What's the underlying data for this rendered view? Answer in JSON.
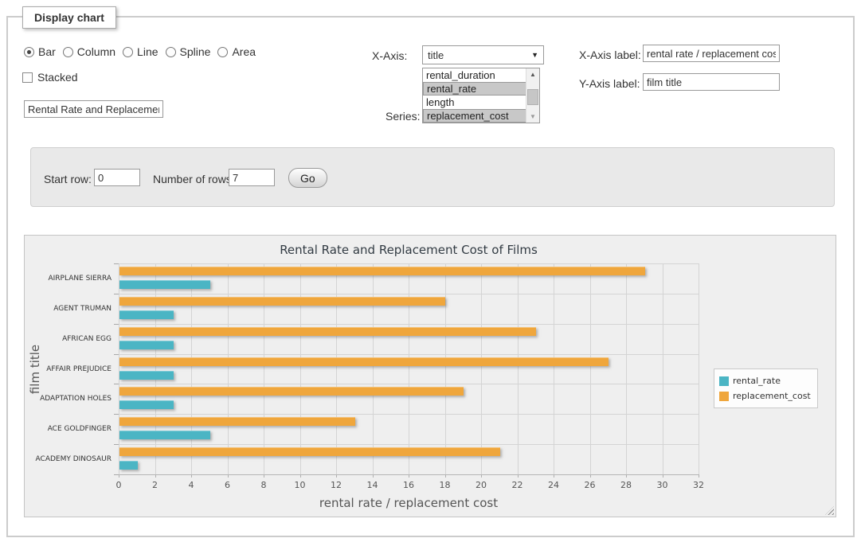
{
  "panel": {
    "legend": "Display chart"
  },
  "chart_type": {
    "options": [
      {
        "label": "Bar",
        "selected": true
      },
      {
        "label": "Column",
        "selected": false
      },
      {
        "label": "Line",
        "selected": false
      },
      {
        "label": "Spline",
        "selected": false
      },
      {
        "label": "Area",
        "selected": false
      }
    ]
  },
  "stacked": {
    "label": "Stacked",
    "checked": false
  },
  "title_input": {
    "value": "Rental Rate and Replacement Cost of Films"
  },
  "x_axis": {
    "label": "X-Axis:",
    "value": "title"
  },
  "series_select": {
    "label": "Series:",
    "options": [
      {
        "label": "rental_duration",
        "selected": false
      },
      {
        "label": "rental_rate",
        "selected": true
      },
      {
        "label": "length",
        "selected": false
      },
      {
        "label": "replacement_cost",
        "selected": true
      }
    ]
  },
  "x_axis_label": {
    "label": "X-Axis label:",
    "value": "rental rate / replacement cost"
  },
  "y_axis_label": {
    "label": "Y-Axis label:",
    "value": "film title"
  },
  "row_controls": {
    "start_row_label": "Start row:",
    "start_row_value": "0",
    "num_rows_label": "Number of rows:",
    "num_rows_value": "7",
    "go_label": "Go"
  },
  "chart_data": {
    "type": "bar",
    "title": "Rental Rate and Replacement Cost of Films",
    "xlabel": "rental rate / replacement cost",
    "ylabel": "film title",
    "xlim": [
      0,
      32
    ],
    "xtick_step": 2,
    "grid": true,
    "legend_position": "right",
    "categories": [
      "AIRPLANE SIERRA",
      "AGENT TRUMAN",
      "AFRICAN EGG",
      "AFFAIR PREJUDICE",
      "ADAPTATION HOLES",
      "ACE GOLDFINGER",
      "ACADEMY DINOSAUR"
    ],
    "series": [
      {
        "name": "rental_rate",
        "color": "#4bb5c4",
        "values": [
          4.99,
          2.99,
          2.99,
          2.99,
          2.99,
          4.99,
          0.99
        ]
      },
      {
        "name": "replacement_cost",
        "color": "#efa63c",
        "values": [
          28.99,
          17.99,
          22.99,
          26.99,
          18.99,
          12.99,
          20.99
        ]
      }
    ]
  }
}
